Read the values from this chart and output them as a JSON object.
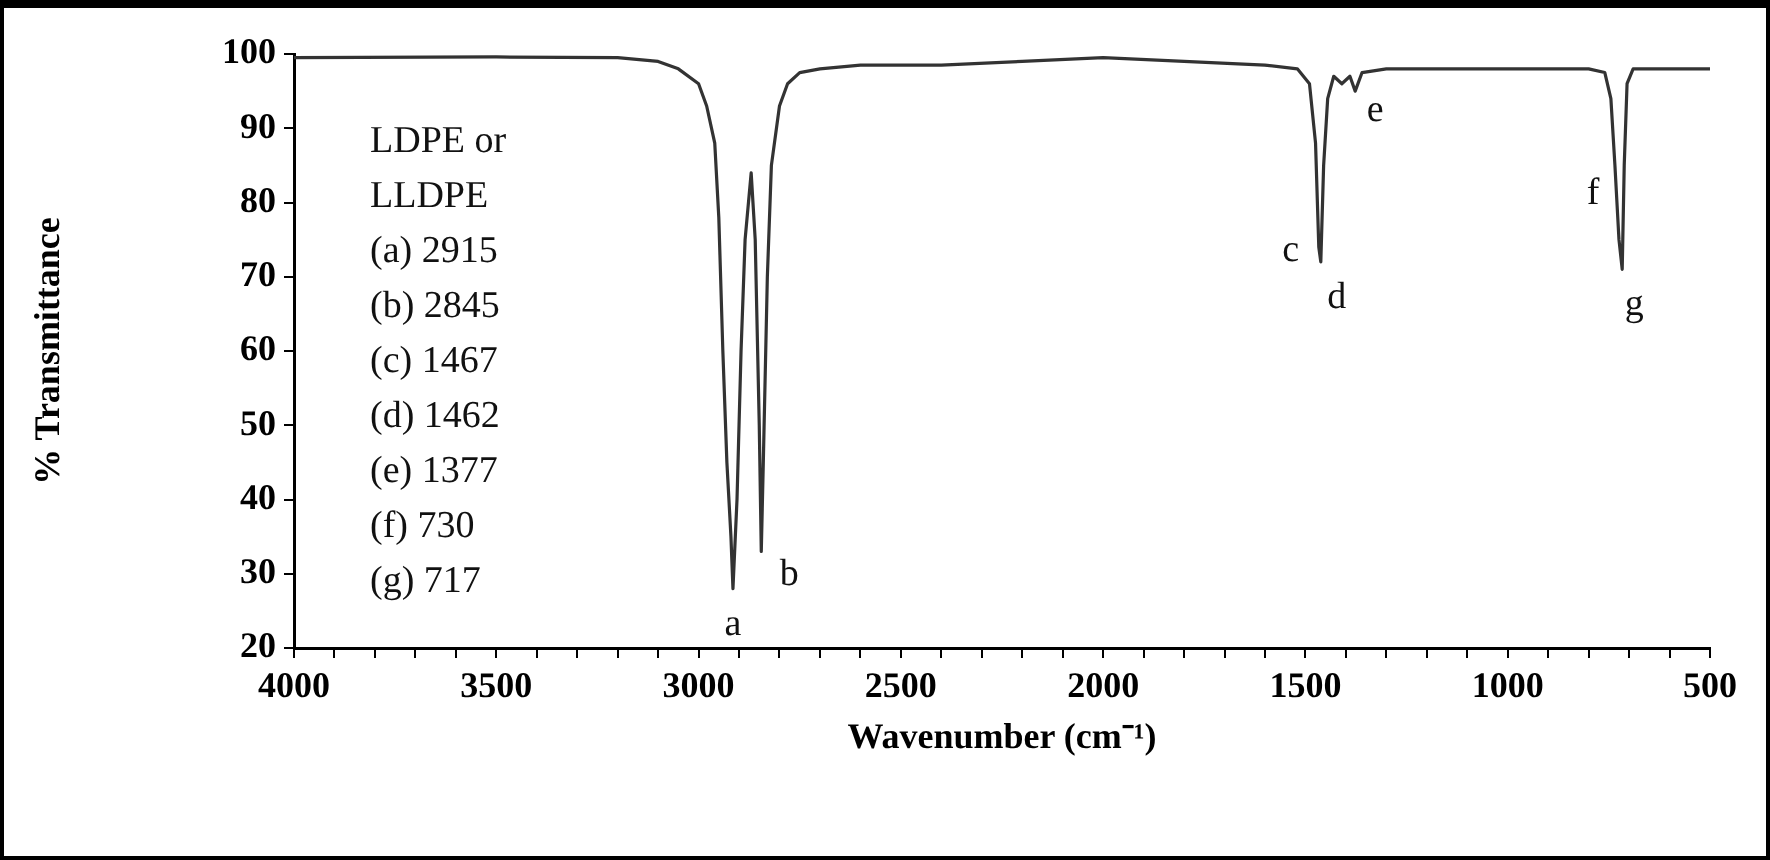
{
  "chart_data": {
    "type": "line",
    "xlabel": "Wavenumber (cm⁻¹)",
    "ylabel": "% Transmittance",
    "x": [
      4000,
      3500,
      3200,
      3100,
      3050,
      3000,
      2980,
      2960,
      2950,
      2940,
      2930,
      2920,
      2915,
      2905,
      2895,
      2885,
      2870,
      2860,
      2850,
      2845,
      2840,
      2830,
      2820,
      2800,
      2780,
      2750,
      2700,
      2600,
      2400,
      2200,
      2000,
      1800,
      1600,
      1520,
      1490,
      1475,
      1467,
      1462,
      1455,
      1445,
      1430,
      1410,
      1390,
      1377,
      1360,
      1300,
      1000,
      800,
      760,
      745,
      735,
      730,
      725,
      717,
      712,
      705,
      690,
      500
    ],
    "series": [
      {
        "color": "#333333",
        "values": [
          99.5,
          99.6,
          99.5,
          99,
          98,
          96,
          93,
          88,
          78,
          60,
          45,
          35,
          28,
          40,
          60,
          75,
          84,
          75,
          50,
          33,
          45,
          70,
          85,
          93,
          96,
          97.5,
          98,
          98.5,
          98.5,
          99,
          99.5,
          99,
          98.5,
          98,
          96,
          88,
          74,
          72,
          85,
          94,
          97,
          96,
          97,
          95,
          97.5,
          98,
          98,
          98,
          97.5,
          94,
          85,
          80,
          75,
          71,
          85,
          96,
          98,
          98
        ]
      }
    ],
    "xlim": [
      4000,
      500
    ],
    "xticks": [
      4000,
      {
        "value": 3900,
        "label": null
      },
      {
        "value": 3800,
        "label": null
      },
      {
        "value": 3700,
        "label": null
      },
      {
        "value": 3600,
        "label": null
      },
      3500,
      {
        "value": 3400,
        "label": null
      },
      {
        "value": 3300,
        "label": null
      },
      {
        "value": 3200,
        "label": null
      },
      {
        "value": 3100,
        "label": null
      },
      3000,
      {
        "value": 2900,
        "label": null
      },
      {
        "value": 2800,
        "label": null
      },
      {
        "value": 2700,
        "label": null
      },
      {
        "value": 2600,
        "label": null
      },
      2500,
      {
        "value": 2400,
        "label": null
      },
      {
        "value": 2300,
        "label": null
      },
      {
        "value": 2200,
        "label": null
      },
      {
        "value": 2100,
        "label": null
      },
      2000,
      {
        "value": 1900,
        "label": null
      },
      {
        "value": 1800,
        "label": null
      },
      {
        "value": 1700,
        "label": null
      },
      {
        "value": 1600,
        "label": null
      },
      1500,
      {
        "value": 1400,
        "label": null
      },
      {
        "value": 1300,
        "label": null
      },
      {
        "value": 1200,
        "label": null
      },
      {
        "value": 1100,
        "label": null
      },
      1000,
      {
        "value": 900,
        "label": null
      },
      {
        "value": 800,
        "label": null
      },
      {
        "value": 700,
        "label": null
      },
      {
        "value": 600,
        "label": null
      },
      500
    ],
    "ylim": [
      20,
      100
    ],
    "yticks": [
      20,
      30,
      40,
      50,
      60,
      70,
      80,
      90,
      100
    ],
    "grid": false,
    "legend": false,
    "marker": "none",
    "line_style": "solid",
    "annotations": [
      "LDPE or",
      "LLDPE",
      "(a) 2915",
      "(b) 2845",
      "(c) 1467",
      "(d) 1462",
      "(e) 1377",
      "(f) 730",
      "(g) 717",
      {
        "text": "a",
        "x": 2915,
        "y": 28
      },
      {
        "text": "b",
        "x": 2845,
        "y": 33
      },
      {
        "text": "c",
        "x": 1467,
        "y": 74
      },
      {
        "text": "d",
        "x": 1462,
        "y": 72
      },
      {
        "text": "e",
        "x": 1377,
        "y": 95
      },
      {
        "text": "f",
        "x": 730,
        "y": 80
      },
      {
        "text": "g",
        "x": 717,
        "y": 71
      }
    ]
  }
}
